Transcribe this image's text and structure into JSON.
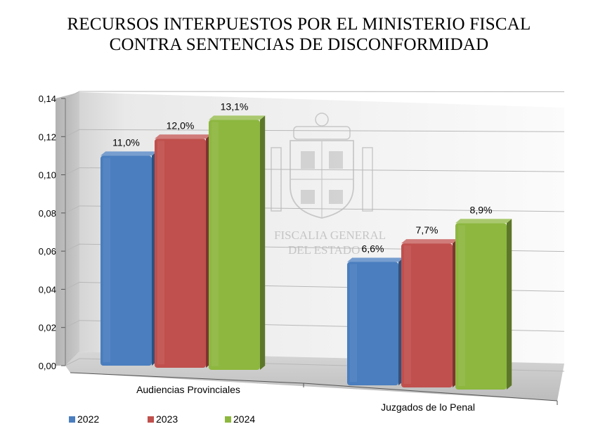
{
  "chart_data": {
    "type": "bar",
    "title": "RECURSOS INTERPUESTOS POR EL MINISTERIO FISCAL CONTRA SENTENCIAS DE DISCONFORMIDAD",
    "title_lines": [
      "RECURSOS INTERPUESTOS POR EL MINISTERIO FISCAL",
      "CONTRA SENTENCIAS DE DISCONFORMIDAD"
    ],
    "categories": [
      "Audiencias Provinciales",
      "Juzgados de lo Penal"
    ],
    "series": [
      {
        "name": "2022",
        "values": [
          0.11,
          0.066
        ],
        "labels": [
          "11,0%",
          "6,6%"
        ],
        "color": "#4a7ebf"
      },
      {
        "name": "2023",
        "values": [
          0.12,
          0.077
        ],
        "labels": [
          "12,0%",
          "7,7%"
        ],
        "color": "#c0504d"
      },
      {
        "name": "2024",
        "values": [
          0.131,
          0.089
        ],
        "labels": [
          "13,1%",
          "8,9%"
        ],
        "color": "#8db73f"
      }
    ],
    "ylim": [
      0,
      0.14
    ],
    "yticks": [
      "0,00",
      "0,02",
      "0,04",
      "0,06",
      "0,08",
      "0,10",
      "0,12",
      "0,14"
    ],
    "xlabel": "",
    "ylabel": "",
    "grid": true,
    "legend_position": "bottom-left",
    "style": "3d-clustered-column"
  },
  "watermark": {
    "lines": [
      "FISCALIA GENERAL",
      "DEL ESTADO"
    ],
    "icon": "coat-of-arms-icon"
  }
}
